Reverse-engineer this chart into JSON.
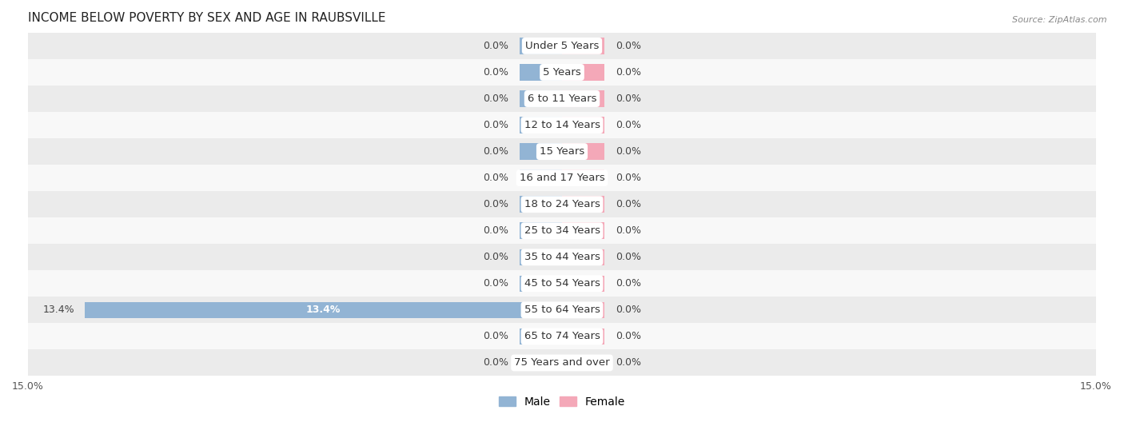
{
  "title": "INCOME BELOW POVERTY BY SEX AND AGE IN RAUBSVILLE",
  "source": "Source: ZipAtlas.com",
  "categories": [
    "Under 5 Years",
    "5 Years",
    "6 to 11 Years",
    "12 to 14 Years",
    "15 Years",
    "16 and 17 Years",
    "18 to 24 Years",
    "25 to 34 Years",
    "35 to 44 Years",
    "45 to 54 Years",
    "55 to 64 Years",
    "65 to 74 Years",
    "75 Years and over"
  ],
  "male_values": [
    0.0,
    0.0,
    0.0,
    0.0,
    0.0,
    0.0,
    0.0,
    0.0,
    0.0,
    0.0,
    13.4,
    0.0,
    0.0
  ],
  "female_values": [
    0.0,
    0.0,
    0.0,
    0.0,
    0.0,
    0.0,
    0.0,
    0.0,
    0.0,
    0.0,
    0.0,
    0.0,
    0.0
  ],
  "xlim": 15.0,
  "min_bar_display": 1.2,
  "male_color": "#92b4d4",
  "female_color": "#f4a8b8",
  "male_label": "Male",
  "female_label": "Female",
  "row_bg_light": "#ebebeb",
  "row_bg_white": "#f8f8f8",
  "bar_height": 0.62,
  "label_fontsize": 9.5,
  "title_fontsize": 11,
  "value_fontsize": 9,
  "axis_label_fontsize": 9
}
